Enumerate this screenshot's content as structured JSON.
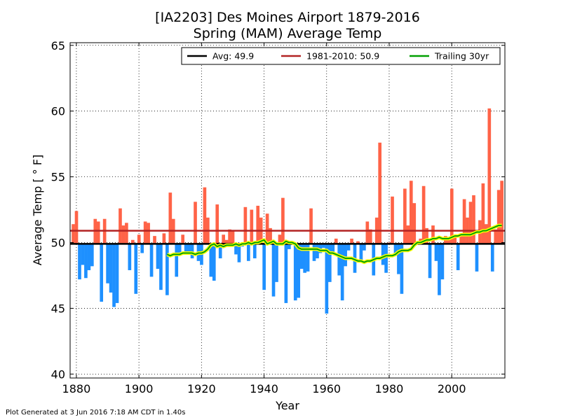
{
  "chart_data": {
    "type": "bar",
    "title": "[IA2203] Des Moines Airport 1879-2016",
    "subtitle": "Spring (MAM) Average Temp",
    "xlabel": "Year",
    "ylabel": "Average Temp [$^\\circ$F]",
    "ylabel_display": "Average Temp [ ° F]",
    "xlim": [
      1878,
      2017
    ],
    "ylim": [
      39.7,
      65.2
    ],
    "xticks": [
      1880,
      1900,
      1920,
      1940,
      1960,
      1980,
      2000
    ],
    "yticks": [
      40,
      45,
      50,
      55,
      60,
      65
    ],
    "grid": true,
    "legend_position": "top-right",
    "colors": {
      "above": "#ff6347",
      "below": "#1e90ff",
      "avg_line": "#000000",
      "normal_line": "#b22222",
      "trailing_line": "#00a000",
      "trailing_halo": "#ffff00"
    },
    "average": {
      "label": "Avg: 49.9",
      "value": 49.9
    },
    "normal": {
      "label": "1981-2010: 50.9",
      "value": 50.9
    },
    "trailing": {
      "label": "Trailing 30yr",
      "x": [
        1909,
        1910,
        1911,
        1912,
        1913,
        1914,
        1915,
        1916,
        1917,
        1918,
        1919,
        1920,
        1921,
        1922,
        1923,
        1924,
        1925,
        1926,
        1927,
        1928,
        1929,
        1930,
        1931,
        1932,
        1933,
        1934,
        1935,
        1936,
        1937,
        1938,
        1939,
        1940,
        1941,
        1942,
        1943,
        1944,
        1945,
        1946,
        1947,
        1948,
        1949,
        1950,
        1951,
        1952,
        1953,
        1954,
        1955,
        1956,
        1957,
        1958,
        1959,
        1960,
        1961,
        1962,
        1963,
        1964,
        1965,
        1966,
        1967,
        1968,
        1969,
        1970,
        1971,
        1972,
        1973,
        1974,
        1975,
        1976,
        1977,
        1978,
        1979,
        1980,
        1981,
        1982,
        1983,
        1984,
        1985,
        1986,
        1987,
        1988,
        1989,
        1990,
        1991,
        1992,
        1993,
        1994,
        1995,
        1996,
        1997,
        1998,
        1999,
        2000,
        2001,
        2002,
        2003,
        2004,
        2005,
        2006,
        2007,
        2008,
        2009,
        2010,
        2011,
        2012,
        2013,
        2014,
        2015,
        2016
      ],
      "y": [
        49.1,
        49.0,
        49.1,
        49.1,
        49.1,
        49.2,
        49.2,
        49.2,
        49.2,
        49.1,
        49.2,
        49.2,
        49.3,
        49.5,
        49.8,
        49.9,
        49.7,
        49.8,
        49.7,
        49.8,
        49.8,
        49.8,
        49.9,
        49.8,
        49.9,
        49.9,
        50.0,
        49.9,
        50.0,
        50.0,
        50.1,
        50.2,
        49.9,
        50.0,
        50.1,
        49.9,
        49.9,
        49.9,
        50.1,
        50.0,
        50.0,
        49.9,
        49.6,
        49.5,
        49.5,
        49.5,
        49.5,
        49.5,
        49.5,
        49.4,
        49.4,
        49.4,
        49.2,
        49.2,
        49.1,
        49.0,
        48.9,
        48.8,
        48.8,
        48.8,
        48.7,
        48.6,
        48.6,
        48.5,
        48.6,
        48.6,
        48.7,
        48.8,
        48.8,
        48.9,
        49.0,
        49.0,
        49.0,
        49.1,
        49.3,
        49.4,
        49.4,
        49.4,
        49.5,
        49.8,
        50.0,
        50.0,
        50.1,
        50.2,
        50.2,
        50.3,
        50.3,
        50.4,
        50.3,
        50.3,
        50.3,
        50.4,
        50.5,
        50.5,
        50.6,
        50.6,
        50.6,
        50.6,
        50.7,
        50.8,
        50.8,
        50.9,
        50.9,
        51.0,
        51.1,
        51.2,
        51.3,
        51.3
      ]
    },
    "years": [
      1879,
      1880,
      1881,
      1882,
      1883,
      1884,
      1885,
      1886,
      1887,
      1888,
      1889,
      1890,
      1891,
      1892,
      1893,
      1894,
      1895,
      1896,
      1897,
      1898,
      1899,
      1900,
      1901,
      1902,
      1903,
      1904,
      1905,
      1906,
      1907,
      1908,
      1909,
      1910,
      1911,
      1912,
      1913,
      1914,
      1915,
      1916,
      1917,
      1918,
      1919,
      1920,
      1921,
      1922,
      1923,
      1924,
      1925,
      1926,
      1927,
      1928,
      1929,
      1930,
      1931,
      1932,
      1933,
      1934,
      1935,
      1936,
      1937,
      1938,
      1939,
      1940,
      1941,
      1942,
      1943,
      1944,
      1945,
      1946,
      1947,
      1948,
      1949,
      1950,
      1951,
      1952,
      1953,
      1954,
      1955,
      1956,
      1957,
      1958,
      1959,
      1960,
      1961,
      1962,
      1963,
      1964,
      1965,
      1966,
      1967,
      1968,
      1969,
      1970,
      1971,
      1972,
      1973,
      1974,
      1975,
      1976,
      1977,
      1978,
      1979,
      1980,
      1981,
      1982,
      1983,
      1984,
      1985,
      1986,
      1987,
      1988,
      1989,
      1990,
      1991,
      1992,
      1993,
      1994,
      1995,
      1996,
      1997,
      1998,
      1999,
      2000,
      2001,
      2002,
      2003,
      2004,
      2005,
      2006,
      2007,
      2008,
      2009,
      2010,
      2011,
      2012,
      2013,
      2014,
      2015,
      2016
    ],
    "values": [
      51.4,
      52.4,
      47.2,
      48.3,
      47.3,
      47.9,
      48.2,
      51.8,
      51.6,
      45.5,
      51.8,
      46.9,
      46.2,
      45.1,
      45.4,
      52.6,
      51.3,
      51.5,
      47.9,
      50.2,
      46.1,
      50.6,
      49.2,
      51.6,
      51.5,
      47.4,
      50.5,
      48.0,
      46.4,
      50.7,
      46.0,
      53.8,
      51.8,
      47.4,
      49.1,
      50.6,
      49.3,
      49.2,
      48.8,
      53.1,
      48.6,
      48.3,
      54.2,
      51.9,
      47.4,
      47.1,
      52.9,
      48.8,
      50.6,
      50.2,
      51.0,
      50.9,
      49.1,
      48.5,
      49.7,
      52.7,
      48.6,
      52.5,
      48.8,
      52.8,
      51.9,
      46.4,
      52.2,
      51.1,
      45.9,
      47.0,
      50.6,
      53.4,
      45.4,
      49.5,
      50.1,
      45.6,
      45.8,
      48.0,
      47.7,
      47.8,
      52.6,
      48.6,
      48.8,
      49.2,
      49.6,
      44.6,
      47.0,
      49.1,
      50.3,
      47.5,
      45.6,
      48.2,
      49.4,
      50.3,
      47.7,
      50.1,
      48.5,
      49.4,
      51.6,
      51.0,
      47.5,
      51.9,
      57.6,
      48.3,
      47.7,
      50.0,
      53.5,
      49.0,
      47.6,
      46.1,
      54.1,
      51.3,
      54.7,
      53.0,
      50.0,
      50.3,
      54.3,
      51.1,
      47.3,
      51.3,
      48.6,
      46.0,
      47.2,
      50.5,
      50.4,
      54.1,
      50.5,
      47.9,
      50.6,
      53.3,
      51.9,
      53.1,
      53.6,
      47.8,
      51.7,
      54.5,
      51.4,
      60.2,
      47.8,
      51.0,
      54.0,
      54.7
    ]
  },
  "footer": "Plot Generated at 3 Jun 2016 7:18 AM CDT in 1.40s"
}
